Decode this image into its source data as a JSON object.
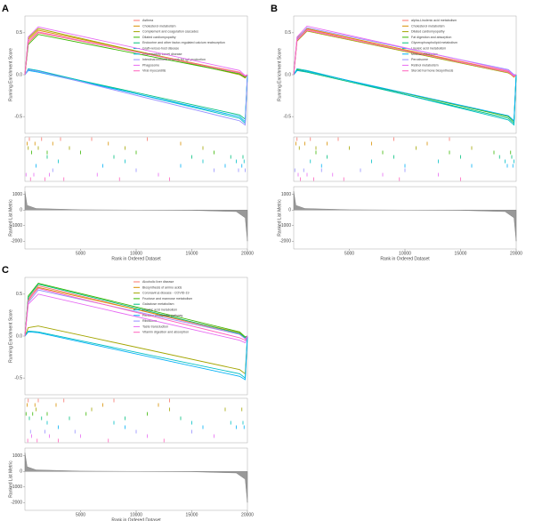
{
  "chart_data": [
    {
      "type": "line",
      "panel_label": "A",
      "ylabel": "Running Enrichment Score",
      "xlabel": "Rank in Ordered Dataset",
      "metric_label": "Ranked List Metric",
      "x": [
        0,
        300,
        1200,
        19300,
        19800,
        20000
      ],
      "xlim": [
        0,
        20000
      ],
      "xticks": [
        5000,
        10000,
        15000,
        20000
      ],
      "ylim": [
        -0.7,
        0.7
      ],
      "yticks": [
        -0.5,
        {
          "value": 0,
          "label": "0.0"
        },
        0.5
      ],
      "series": [
        {
          "name": "Asthma",
          "color": "#F8766D",
          "values": [
            0,
            0.38,
            0.5,
            0.03,
            -0.02,
            0
          ],
          "hits": [
            400,
            1500,
            3200,
            6000,
            11000
          ]
        },
        {
          "name": "Cholesterol metabolism",
          "color": "#D89000",
          "values": [
            0,
            0.42,
            0.53,
            0.02,
            -0.03,
            0
          ],
          "hits": [
            200,
            900,
            2500,
            7500,
            14000
          ]
        },
        {
          "name": "Complement and coagulation cascades",
          "color": "#A3A500",
          "values": [
            0,
            0.44,
            0.55,
            0.0,
            -0.04,
            0
          ],
          "hits": [
            300,
            1200,
            4000,
            9000,
            16000
          ]
        },
        {
          "name": "Dilated cardiomyopathy",
          "color": "#39B600",
          "values": [
            0,
            0.36,
            0.48,
            0.01,
            -0.03,
            0
          ],
          "hits": [
            600,
            2000,
            5000,
            10000,
            17000
          ]
        },
        {
          "name": "Endocrine and other factor-regulated calcium reabsorption",
          "color": "#00BF7D",
          "values": [
            0,
            0.06,
            0.04,
            -0.48,
            -0.53,
            0
          ],
          "hits": [
            2000,
            8000,
            15000,
            18500,
            19600
          ]
        },
        {
          "name": "Graft-versus-host disease",
          "color": "#00BFC4",
          "values": [
            0,
            0.07,
            0.05,
            -0.52,
            -0.58,
            0
          ],
          "hits": [
            3000,
            9000,
            16000,
            19000,
            19700
          ]
        },
        {
          "name": "Inflammatory bowel disease",
          "color": "#00B0F6",
          "values": [
            0,
            0.05,
            0.03,
            -0.5,
            -0.56,
            0
          ],
          "hits": [
            1000,
            7000,
            14000,
            18000,
            19500
          ]
        },
        {
          "name": "Intestinal immune network for IgA production",
          "color": "#9590FF",
          "values": [
            0,
            0.06,
            0.04,
            -0.55,
            -0.6,
            0
          ],
          "hits": [
            2500,
            10000,
            17000,
            19200,
            19800
          ]
        },
        {
          "name": "Phagosome",
          "color": "#E76BF3",
          "values": [
            0,
            0.45,
            0.57,
            0.05,
            -0.01,
            0
          ],
          "hits": [
            100,
            800,
            2200,
            6500,
            12000
          ]
        },
        {
          "name": "Viral myocarditis",
          "color": "#FF62BC",
          "values": [
            0,
            0.4,
            0.51,
            0.02,
            -0.02,
            0
          ],
          "hits": [
            500,
            1800,
            3500,
            8500,
            13000
          ]
        }
      ],
      "metric": {
        "x": [
          0,
          200,
          1000,
          5000,
          10000,
          15000,
          19000,
          19800,
          20000
        ],
        "values": [
          1200,
          300,
          100,
          20,
          0,
          -20,
          -100,
          -500,
          -2000
        ],
        "ylim": [
          -2500,
          1500
        ],
        "yticks": [
          -2000,
          -1000,
          0,
          1000
        ]
      }
    },
    {
      "type": "line",
      "panel_label": "B",
      "ylabel": "Running Enrichment Score",
      "xlabel": "Rank in Ordered Dataset",
      "metric_label": "Ranked List Metric",
      "x": [
        0,
        300,
        1200,
        19300,
        19800,
        20000
      ],
      "xlim": [
        0,
        20000
      ],
      "xticks": [
        5000,
        10000,
        15000,
        20000
      ],
      "ylim": [
        -0.7,
        0.7
      ],
      "yticks": [
        -0.5,
        {
          "value": 0,
          "label": "0.0"
        },
        0.5
      ],
      "series": [
        {
          "name": "alpha-Linolenic acid metabolism",
          "color": "#F8766D",
          "values": [
            0,
            0.42,
            0.54,
            0.04,
            -0.02,
            0
          ],
          "hits": [
            300,
            1500,
            4000,
            9000,
            14000
          ]
        },
        {
          "name": "Cholesterol metabolism",
          "color": "#D89000",
          "values": [
            0,
            0.44,
            0.55,
            0.03,
            -0.03,
            0
          ],
          "hits": [
            200,
            1000,
            3000,
            7000,
            12000
          ]
        },
        {
          "name": "Dilated cardiomyopathy",
          "color": "#A3A500",
          "values": [
            0,
            0.4,
            0.52,
            0.02,
            -0.02,
            0
          ],
          "hits": [
            500,
            2000,
            5000,
            11000,
            16000
          ]
        },
        {
          "name": "Fat digestion and absorption",
          "color": "#39B600",
          "values": [
            0,
            0.06,
            0.04,
            -0.5,
            -0.56,
            0
          ],
          "hits": [
            2000,
            8000,
            14000,
            18000,
            19500
          ]
        },
        {
          "name": "Glycerophospholipid metabolism",
          "color": "#00BF7D",
          "values": [
            0,
            0.05,
            0.03,
            -0.52,
            -0.58,
            0
          ],
          "hits": [
            3000,
            9000,
            15000,
            18500,
            19600
          ]
        },
        {
          "name": "Linoleic acid metabolism",
          "color": "#00BFC4",
          "values": [
            0,
            0.07,
            0.05,
            -0.54,
            -0.6,
            0
          ],
          "hits": [
            1500,
            7000,
            13000,
            19000,
            19800
          ]
        },
        {
          "name": "Mineral absorption",
          "color": "#00B0F6",
          "values": [
            0,
            0.05,
            0.04,
            -0.49,
            -0.55,
            0
          ],
          "hits": [
            2500,
            10000,
            16000,
            19200,
            19700
          ]
        },
        {
          "name": "Peroxisome",
          "color": "#9590FF",
          "values": [
            0,
            0.43,
            0.56,
            0.06,
            0.0,
            0
          ],
          "hits": [
            100,
            900,
            2500,
            6000,
            10000
          ]
        },
        {
          "name": "Retinol metabolism",
          "color": "#E76BF3",
          "values": [
            0,
            0.45,
            0.58,
            0.05,
            -0.01,
            0
          ],
          "hits": [
            400,
            1200,
            3500,
            8000,
            13000
          ]
        },
        {
          "name": "Steroid hormone biosynthesis",
          "color": "#FF62BC",
          "values": [
            0,
            0.41,
            0.53,
            0.03,
            -0.02,
            0
          ],
          "hits": [
            600,
            1800,
            4500,
            9500,
            15000
          ]
        }
      ],
      "metric": {
        "x": [
          0,
          200,
          1000,
          5000,
          10000,
          15000,
          19000,
          19800,
          20000
        ],
        "values": [
          1200,
          300,
          100,
          20,
          0,
          -20,
          -100,
          -500,
          -2000
        ],
        "ylim": [
          -2500,
          1500
        ],
        "yticks": [
          -2000,
          -1000,
          0,
          1000
        ]
      }
    },
    {
      "type": "line",
      "panel_label": "C",
      "ylabel": "Running Enrichment Score",
      "xlabel": "Rank in Ordered Dataset",
      "metric_label": "Ranked List Metric",
      "x": [
        0,
        300,
        1200,
        19300,
        19800,
        20000
      ],
      "xlim": [
        0,
        20000
      ],
      "xticks": [
        5000,
        10000,
        15000,
        20000
      ],
      "ylim": [
        -0.7,
        0.7
      ],
      "yticks": [
        -0.5,
        {
          "value": 0,
          "label": "0.0"
        },
        0.5
      ],
      "series": [
        {
          "name": "Alcoholic liver disease",
          "color": "#F8766D",
          "values": [
            0,
            0.44,
            0.6,
            0.02,
            -0.03,
            0
          ],
          "hits": [
            300,
            1200,
            3500,
            8000,
            13000
          ]
        },
        {
          "name": "Biosynthesis of amino acids",
          "color": "#D89000",
          "values": [
            0,
            0.42,
            0.58,
            0.04,
            -0.02,
            0
          ],
          "hits": [
            200,
            900,
            2800,
            7000,
            12000
          ]
        },
        {
          "name": "Coronavirus disease - COVID-19",
          "color": "#A3A500",
          "values": [
            0,
            0.1,
            0.12,
            -0.4,
            -0.45,
            0
          ],
          "hits": [
            1000,
            6000,
            13000,
            18000,
            19500
          ]
        },
        {
          "name": "Fructose and mannose metabolism",
          "color": "#39B600",
          "values": [
            0,
            0.48,
            0.63,
            0.05,
            -0.01,
            0
          ],
          "hits": [
            100,
            700,
            2000,
            5500,
            11000
          ]
        },
        {
          "name": "Galactose metabolism",
          "color": "#00BF7D",
          "values": [
            0,
            0.46,
            0.62,
            0.03,
            -0.02,
            0
          ],
          "hits": [
            400,
            1500,
            4000,
            9000,
            14000
          ]
        },
        {
          "name": "Linoleic acid metabolism",
          "color": "#00BFC4",
          "values": [
            0,
            0.06,
            0.05,
            -0.45,
            -0.5,
            0
          ],
          "hits": [
            2000,
            8000,
            15000,
            18500,
            19600
          ]
        },
        {
          "name": "Pentose phosphate pathway",
          "color": "#00B0F6",
          "values": [
            0,
            0.05,
            0.04,
            -0.48,
            -0.52,
            0
          ],
          "hits": [
            3000,
            9000,
            16000,
            19000,
            19700
          ]
        },
        {
          "name": "Ribosome",
          "color": "#9590FF",
          "values": [
            0,
            0.4,
            0.55,
            0.02,
            -0.03,
            0
          ],
          "hits": [
            500,
            1800,
            4500,
            10000,
            15000
          ]
        },
        {
          "name": "Taste transduction",
          "color": "#E76BF3",
          "values": [
            0,
            0.38,
            0.5,
            -0.05,
            -0.08,
            0
          ],
          "hits": [
            600,
            2200,
            5000,
            11000,
            17000
          ]
        },
        {
          "name": "Vitamin digestion and absorption",
          "color": "#FF62BC",
          "values": [
            0,
            0.43,
            0.57,
            -0.02,
            -0.05,
            0
          ],
          "hits": [
            250,
            1100,
            3000,
            7500,
            12500
          ]
        }
      ],
      "metric": {
        "x": [
          0,
          200,
          1000,
          5000,
          10000,
          15000,
          19000,
          19800,
          20000
        ],
        "values": [
          1200,
          300,
          100,
          20,
          0,
          -20,
          -100,
          -500,
          -2000
        ],
        "ylim": [
          -2500,
          1500
        ],
        "yticks": [
          -2000,
          -1000,
          0,
          1000
        ]
      }
    }
  ]
}
